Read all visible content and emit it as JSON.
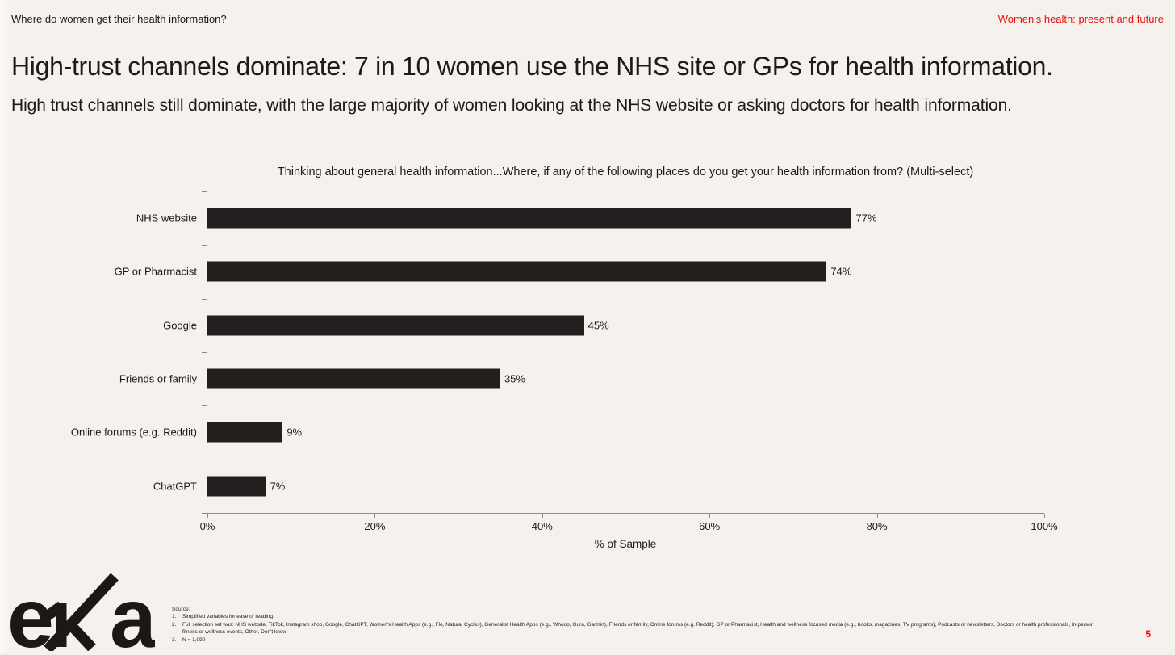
{
  "header": {
    "kicker": "Where do women get their health information?",
    "report_title": "Women's health: present and future",
    "title": "High-trust channels dominate: 7 in 10 women use the NHS site or GPs for health information.",
    "subtitle": "High trust channels still dominate, with the large majority of women looking at the NHS website or asking doctors for health information."
  },
  "chart_data": {
    "type": "bar",
    "orientation": "horizontal",
    "title": "Thinking about general health information...Where, if any of the following places do you get your health information from? (Multi-select)",
    "categories": [
      "NHS website",
      "GP or Pharmacist",
      "Google",
      "Friends or family",
      "Online forums (e.g. Reddit)",
      "ChatGPT"
    ],
    "values": [
      77,
      74,
      45,
      35,
      9,
      7
    ],
    "value_labels": [
      "77%",
      "74%",
      "45%",
      "35%",
      "9%",
      "7%"
    ],
    "xlabel": "% of Sample",
    "xlim": [
      0,
      100
    ],
    "x_ticks": [
      0,
      20,
      40,
      60,
      80,
      100
    ],
    "x_tick_labels": [
      "0%",
      "20%",
      "40%",
      "60%",
      "80%",
      "100%"
    ],
    "legend": "none",
    "grid": false
  },
  "footer": {
    "logo_text": "eka",
    "logo_letters": [
      "e",
      "k",
      "a"
    ],
    "source_label": "Source:",
    "notes": [
      {
        "num": "1.",
        "text": "Simplified variables for ease of reading."
      },
      {
        "num": "2.",
        "text": "Full selection set was: NHS website, TikTok, Instagram shop, Google, ChatGPT, Women's Health Apps (e.g., Flo, Natural Cycles), Generalist Health Apps (e.g., Whoop, Oura, Garmin), Friends or family, Online forums (e.g. Reddit), GP or Pharmacist, Health and wellness focused media (e.g., books, magazines, TV programs), Podcasts or newsletters, Doctors or health professionals, In-person fitness or wellness events, Other, Don't know"
      },
      {
        "num": "3.",
        "text": "N = 1,090"
      }
    ],
    "page_number": "5"
  },
  "colors": {
    "background": "#f5f1ec",
    "accent_red": "#ee0f0f",
    "bar": "#231f1e",
    "axis": "#8c8c88",
    "text": "#1d1a19"
  }
}
